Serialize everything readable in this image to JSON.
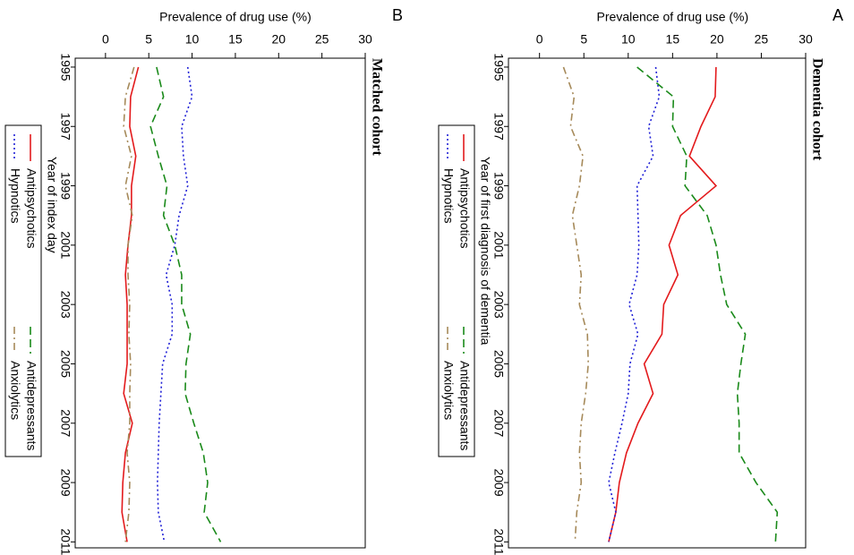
{
  "chart_data": [
    {
      "type": "line",
      "panel": "A",
      "title": "Dementia cohort",
      "x_label": "Year of first diagnosis of dementia",
      "y_label": "Prevalence of drug use (%)",
      "x": [
        1995,
        1996,
        1997,
        1998,
        1999,
        2000,
        2001,
        2002,
        2003,
        2004,
        2005,
        2006,
        2007,
        2008,
        2009,
        2010,
        2011
      ],
      "xlim": [
        1994.7,
        2011.2
      ],
      "xticks": [
        1995,
        1997,
        1999,
        2001,
        2003,
        2005,
        2007,
        2009,
        2011
      ],
      "ylim": [
        -3.5,
        30
      ],
      "yticks": [
        0,
        5,
        10,
        15,
        20,
        25,
        30
      ],
      "series": [
        {
          "name": "Antipsychotics",
          "color": "#e31a1c",
          "values": [
            19.9,
            19.8,
            18.2,
            16.9,
            19.9,
            15.9,
            14.6,
            15.6,
            14.0,
            13.8,
            11.8,
            12.8,
            11.1,
            9.8,
            9.0,
            8.6,
            7.8
          ]
        },
        {
          "name": "Hypnotics",
          "color": "#1f1fd6",
          "values": [
            13.1,
            13.5,
            12.3,
            12.8,
            11.0,
            11.1,
            11.2,
            11.0,
            10.1,
            11.1,
            10.2,
            10.0,
            9.3,
            8.5,
            7.8,
            8.6,
            7.8
          ]
        },
        {
          "name": "Antidepressants",
          "color": "#1a8a1a",
          "values": [
            11.0,
            15.1,
            15.0,
            16.6,
            16.4,
            18.9,
            19.9,
            20.4,
            21.1,
            23.2,
            22.7,
            22.3,
            22.5,
            22.5,
            24.4,
            26.8,
            26.6
          ]
        },
        {
          "name": "Anxiolytics",
          "color": "#a68a5a",
          "values": [
            2.7,
            3.9,
            3.5,
            4.9,
            4.5,
            3.7,
            4.2,
            4.7,
            4.5,
            5.4,
            5.5,
            5.2,
            4.7,
            4.5,
            4.7,
            4.2,
            4.0
          ]
        }
      ]
    },
    {
      "type": "line",
      "panel": "B",
      "title": "Matched cohort",
      "x_label": "Year of index day",
      "y_label": "Prevalence of drug use (%)",
      "x": [
        1995,
        1996,
        1997,
        1998,
        1999,
        2000,
        2001,
        2002,
        2003,
        2004,
        2005,
        2006,
        2007,
        2008,
        2009,
        2010,
        2011
      ],
      "xlim": [
        1994.7,
        2011.2
      ],
      "xticks": [
        1995,
        1997,
        1999,
        2001,
        2003,
        2005,
        2007,
        2009,
        2011
      ],
      "ylim": [
        -3.5,
        30
      ],
      "yticks": [
        0,
        5,
        10,
        15,
        20,
        25,
        30
      ],
      "series": [
        {
          "name": "Antipsychotics",
          "color": "#e31a1c",
          "values": [
            3.8,
            2.9,
            2.8,
            3.5,
            3.0,
            3.0,
            2.6,
            2.3,
            2.5,
            2.5,
            2.5,
            2.1,
            3.1,
            2.3,
            2.0,
            1.9,
            2.5
          ]
        },
        {
          "name": "Hypnotics",
          "color": "#1f1fd6",
          "values": [
            9.5,
            10.0,
            8.8,
            9.0,
            9.5,
            8.5,
            8.0,
            7.0,
            7.7,
            7.7,
            6.6,
            6.4,
            6.2,
            6.1,
            6.0,
            6.1,
            6.8
          ]
        },
        {
          "name": "Antidepressants",
          "color": "#1a8a1a",
          "values": [
            5.9,
            6.7,
            5.2,
            6.1,
            7.1,
            6.7,
            8.0,
            8.8,
            8.8,
            9.8,
            9.3,
            9.2,
            10.2,
            11.3,
            11.8,
            11.4,
            13.3
          ]
        },
        {
          "name": "Anxiolytics",
          "color": "#a68a5a",
          "values": [
            3.3,
            2.3,
            2.1,
            3.0,
            2.3,
            3.1,
            2.6,
            2.6,
            2.8,
            2.7,
            2.9,
            2.8,
            2.8,
            2.5,
            2.8,
            2.7,
            2.3
          ]
        }
      ]
    }
  ]
}
